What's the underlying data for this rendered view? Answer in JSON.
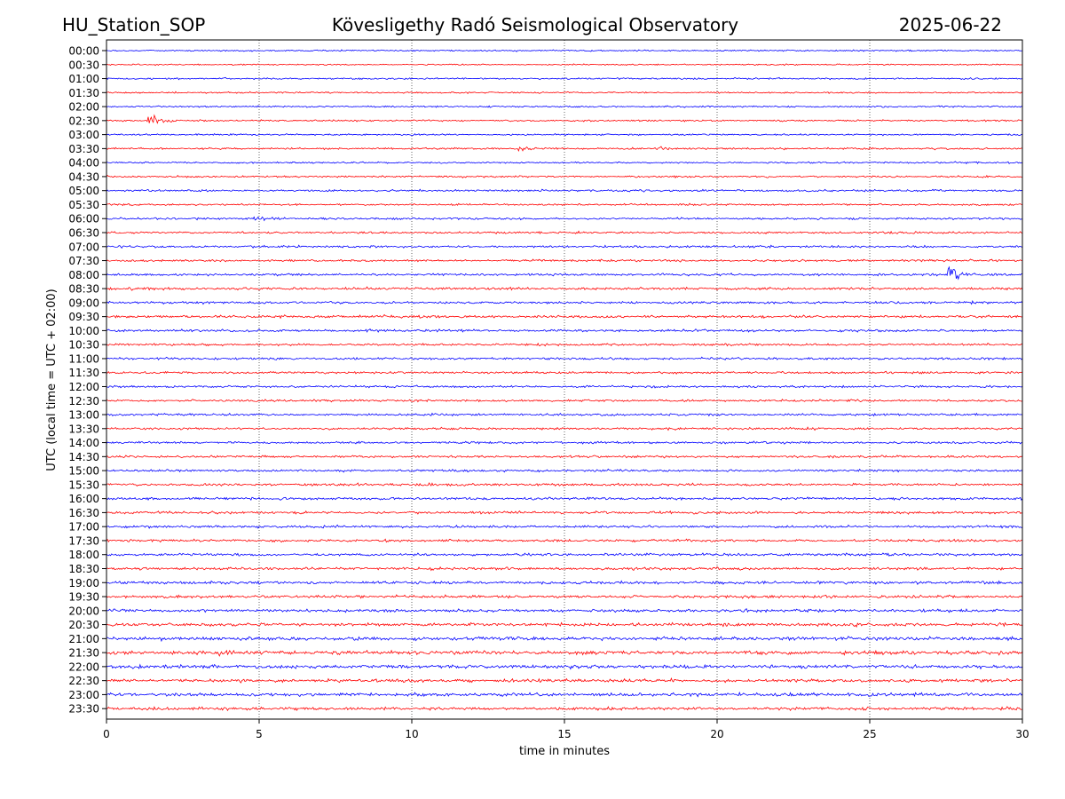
{
  "header": {
    "station": "HU_Station_SOP",
    "title": "Kövesligethy Radó Seismological Observatory",
    "date": "2025-06-22"
  },
  "chart_data": {
    "type": "line",
    "subtype": "helicorder",
    "xlabel": "time in minutes",
    "ylabel": "UTC (local time = UTC + 02:00)",
    "xlim": [
      0,
      30
    ],
    "xticks": [
      0,
      5,
      10,
      15,
      20,
      25,
      30
    ],
    "grid": "vertical dotted lines at x ticks",
    "colors": {
      "even_rows": "#0000ff",
      "odd_rows": "#ff0000"
    },
    "rows": [
      "00:00",
      "00:30",
      "01:00",
      "01:30",
      "02:00",
      "02:30",
      "03:00",
      "03:30",
      "04:00",
      "04:30",
      "05:00",
      "05:30",
      "06:00",
      "06:30",
      "07:00",
      "07:30",
      "08:00",
      "08:30",
      "09:00",
      "09:30",
      "10:00",
      "10:30",
      "11:00",
      "11:30",
      "12:00",
      "12:30",
      "13:00",
      "13:30",
      "14:00",
      "14:30",
      "15:00",
      "15:30",
      "16:00",
      "16:30",
      "17:00",
      "17:30",
      "18:00",
      "18:30",
      "19:00",
      "19:30",
      "20:00",
      "20:30",
      "21:00",
      "21:30",
      "22:00",
      "22:30",
      "23:00",
      "23:30"
    ],
    "row_noise_level": [
      0.4,
      0.35,
      0.45,
      0.4,
      0.45,
      0.45,
      0.45,
      0.5,
      0.45,
      0.5,
      0.55,
      0.5,
      0.55,
      0.55,
      0.6,
      0.6,
      0.6,
      0.65,
      0.65,
      0.7,
      0.65,
      0.6,
      0.6,
      0.6,
      0.6,
      0.6,
      0.6,
      0.6,
      0.6,
      0.6,
      0.6,
      0.65,
      0.7,
      0.7,
      0.65,
      0.65,
      0.7,
      0.7,
      0.75,
      0.75,
      0.8,
      0.85,
      0.95,
      1.0,
      0.95,
      0.85,
      0.9,
      0.8
    ],
    "events": [
      {
        "row": "02:30",
        "minute": 1.4,
        "amplitude": 5
      },
      {
        "row": "03:30",
        "minute": 13.5,
        "amplitude": 1.2
      },
      {
        "row": "03:30",
        "minute": 18.0,
        "amplitude": 1.3
      },
      {
        "row": "06:00",
        "minute": 4.9,
        "amplitude": 1.3
      },
      {
        "row": "08:00",
        "minute": 27.6,
        "amplitude": 4.5
      },
      {
        "row": "08:30",
        "minute": 0.8,
        "amplitude": 1.3
      },
      {
        "row": "21:30",
        "minute": 3.7,
        "amplitude": 1.4
      },
      {
        "row": "23:00",
        "minute": 18.8,
        "amplitude": 1.5
      }
    ]
  }
}
